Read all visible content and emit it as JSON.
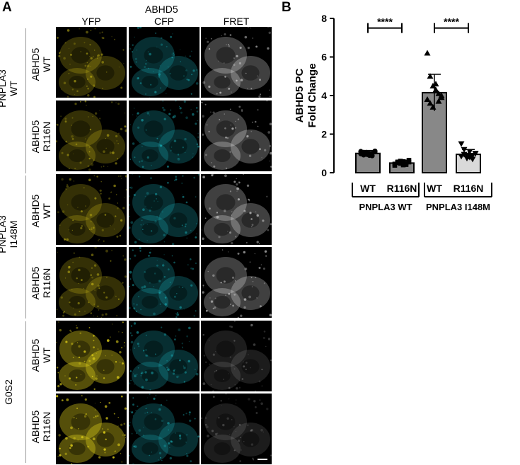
{
  "panel_a": {
    "label": "A",
    "header_top": "ABHD5",
    "columns": [
      "YFP",
      "CFP",
      "FRET"
    ],
    "groups": [
      {
        "label_line1": "PNPLA3",
        "label_line2": "WT"
      },
      {
        "label_line1": "PNPLA3",
        "label_line2": "I148M"
      },
      {
        "label_line1": "G0S2",
        "label_line2": ""
      }
    ],
    "rows": [
      {
        "line1": "ABHD5",
        "line2": "WT"
      },
      {
        "line1": "ABHD5",
        "line2": "R116N"
      },
      {
        "line1": "ABHD5",
        "line2": "WT"
      },
      {
        "line1": "ABHD5",
        "line2": "R116N"
      },
      {
        "line1": "ABHD5",
        "line2": "WT"
      },
      {
        "line1": "ABHD5",
        "line2": "R116N"
      }
    ],
    "channel_colors": {
      "yfp": "#e0d01a",
      "cfp": "#1ec8d2",
      "fret": "#ffffff"
    }
  },
  "panel_b": {
    "label": "B",
    "chart_data": {
      "type": "bar",
      "ylabel_line1": "ABHD5 PC",
      "ylabel_line2": "Fold  Change",
      "ylim": [
        0,
        8
      ],
      "yticks": [
        "0",
        "2",
        "4",
        "6",
        "8"
      ],
      "categories": [
        "WT",
        "R116N",
        "WT",
        "R116N"
      ],
      "group_labels": [
        "PNPLA3 WT",
        "PNPLA3 I148M"
      ],
      "values": [
        1.0,
        0.5,
        4.15,
        0.95
      ],
      "errors": [
        0.15,
        0.15,
        0.95,
        0.25
      ],
      "bar_colors": [
        "#888888",
        "#888888",
        "#888888",
        "#d9d9d9"
      ],
      "significance": [
        "****",
        "****"
      ],
      "points": [
        [
          1.1,
          1.05,
          0.95,
          0.9,
          1.0,
          1.12,
          0.98,
          0.92,
          1.05,
          1.0,
          0.88,
          1.08
        ],
        [
          0.45,
          0.55,
          0.6,
          0.4,
          0.5,
          0.65,
          0.38,
          0.52,
          0.48,
          0.58,
          0.42,
          0.55
        ],
        [
          6.2,
          5.0,
          4.5,
          4.3,
          4.1,
          3.9,
          3.8,
          3.6,
          3.4,
          4.6,
          3.7,
          4.0
        ],
        [
          1.5,
          1.2,
          0.9,
          0.8,
          0.7,
          1.0,
          0.85,
          0.95,
          0.75,
          1.1,
          0.9,
          1.0
        ]
      ],
      "point_markers": [
        "circle",
        "square",
        "triangle",
        "triangle-down"
      ]
    }
  }
}
